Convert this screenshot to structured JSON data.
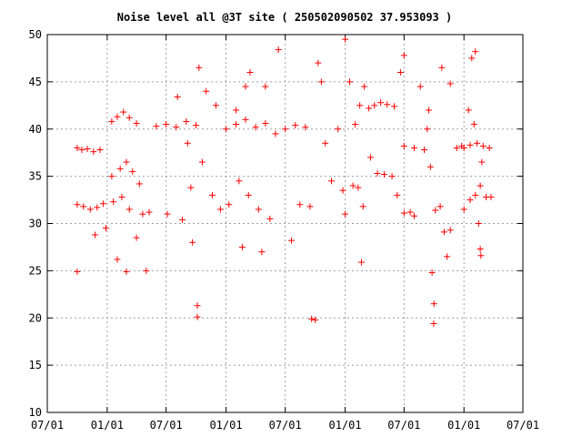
{
  "chart_data": {
    "type": "scatter",
    "title": "Noise level all @3T site ( 250502090502 37.953093 )",
    "xlabel": "",
    "ylabel": "",
    "ylim": [
      10,
      50
    ],
    "xlim": [
      "2002-07-01",
      "2006-07-01"
    ],
    "y_ticks": [
      10,
      15,
      20,
      25,
      30,
      35,
      40,
      45,
      50
    ],
    "x_ticks": [
      {
        "date": "2002-07-01",
        "label": "07/01"
      },
      {
        "date": "2003-01-01",
        "label": "01/01"
      },
      {
        "date": "2003-07-01",
        "label": "07/01"
      },
      {
        "date": "2004-01-01",
        "label": "01/01"
      },
      {
        "date": "2004-07-01",
        "label": "07/01"
      },
      {
        "date": "2005-01-01",
        "label": "01/01"
      },
      {
        "date": "2005-07-01",
        "label": "07/01"
      },
      {
        "date": "2006-01-01",
        "label": "01/01"
      },
      {
        "date": "2006-07-01",
        "label": "07/01"
      }
    ],
    "grid": true,
    "marker": "+",
    "color": "#ff0000",
    "series": [
      {
        "points": [
          [
            "2002-10-01",
            38.0
          ],
          [
            "2002-10-15",
            37.8
          ],
          [
            "2002-11-01",
            37.9
          ],
          [
            "2002-11-20",
            37.6
          ],
          [
            "2002-12-10",
            37.8
          ],
          [
            "2002-10-01",
            32.0
          ],
          [
            "2002-10-20",
            31.8
          ],
          [
            "2002-11-10",
            31.5
          ],
          [
            "2002-12-01",
            31.7
          ],
          [
            "2002-12-20",
            32.1
          ],
          [
            "2002-10-01",
            24.9
          ],
          [
            "2002-11-25",
            28.8
          ],
          [
            "2002-12-28",
            29.5
          ],
          [
            "2003-01-15",
            40.8
          ],
          [
            "2003-02-01",
            41.3
          ],
          [
            "2003-02-20",
            41.8
          ],
          [
            "2003-03-10",
            41.2
          ],
          [
            "2003-04-01",
            40.6
          ],
          [
            "2003-01-15",
            35.0
          ],
          [
            "2003-02-10",
            35.8
          ],
          [
            "2003-03-01",
            36.5
          ],
          [
            "2003-03-20",
            35.5
          ],
          [
            "2003-04-10",
            34.2
          ],
          [
            "2003-01-20",
            32.3
          ],
          [
            "2003-02-15",
            32.8
          ],
          [
            "2003-03-10",
            31.5
          ],
          [
            "2003-04-20",
            31.0
          ],
          [
            "2003-05-10",
            31.2
          ],
          [
            "2003-02-01",
            26.2
          ],
          [
            "2003-03-01",
            24.9
          ],
          [
            "2003-05-01",
            25.0
          ],
          [
            "2003-04-01",
            28.5
          ],
          [
            "2003-06-01",
            40.3
          ],
          [
            "2003-07-01",
            40.5
          ],
          [
            "2003-08-01",
            40.2
          ],
          [
            "2003-09-01",
            40.8
          ],
          [
            "2003-10-01",
            40.4
          ],
          [
            "2003-08-05",
            43.4
          ],
          [
            "2003-09-05",
            38.5
          ],
          [
            "2003-10-10",
            46.5
          ],
          [
            "2003-11-01",
            44.0
          ],
          [
            "2003-12-01",
            42.5
          ],
          [
            "2003-07-05",
            31.0
          ],
          [
            "2003-08-20",
            30.4
          ],
          [
            "2003-09-15",
            33.8
          ],
          [
            "2003-10-20",
            36.5
          ],
          [
            "2003-11-20",
            33.0
          ],
          [
            "2003-10-05",
            21.3
          ],
          [
            "2003-10-05",
            20.1
          ],
          [
            "2003-09-20",
            28.0
          ],
          [
            "2003-12-15",
            31.5
          ],
          [
            "2004-01-01",
            40.0
          ],
          [
            "2004-02-01",
            40.5
          ],
          [
            "2004-03-01",
            41.0
          ],
          [
            "2004-04-01",
            40.2
          ],
          [
            "2004-05-01",
            40.6
          ],
          [
            "2004-02-01",
            42.0
          ],
          [
            "2004-03-01",
            44.5
          ],
          [
            "2004-03-15",
            46.0
          ],
          [
            "2004-05-01",
            44.5
          ],
          [
            "2004-06-10",
            48.4
          ],
          [
            "2004-01-10",
            32.0
          ],
          [
            "2004-02-10",
            34.5
          ],
          [
            "2004-03-10",
            33.0
          ],
          [
            "2004-04-10",
            31.5
          ],
          [
            "2004-05-15",
            30.5
          ],
          [
            "2004-02-20",
            27.5
          ],
          [
            "2004-04-20",
            27.0
          ],
          [
            "2004-06-01",
            39.5
          ],
          [
            "2004-07-01",
            40.0
          ],
          [
            "2004-08-01",
            40.4
          ],
          [
            "2004-09-01",
            40.2
          ],
          [
            "2004-07-20",
            28.2
          ],
          [
            "2004-08-15",
            32.0
          ],
          [
            "2004-09-15",
            31.8
          ],
          [
            "2004-09-20",
            19.9
          ],
          [
            "2004-10-01",
            19.8
          ],
          [
            "2004-10-10",
            47.0
          ],
          [
            "2004-10-20",
            45.0
          ],
          [
            "2004-11-01",
            38.5
          ],
          [
            "2004-11-20",
            34.5
          ],
          [
            "2004-12-10",
            40.0
          ],
          [
            "2004-12-25",
            33.5
          ],
          [
            "2005-01-01",
            49.5
          ],
          [
            "2005-01-15",
            45.0
          ],
          [
            "2005-02-01",
            40.5
          ],
          [
            "2005-02-15",
            42.5
          ],
          [
            "2005-03-01",
            44.5
          ],
          [
            "2005-03-15",
            42.2
          ],
          [
            "2005-04-01",
            42.5
          ],
          [
            "2005-04-20",
            42.8
          ],
          [
            "2005-05-10",
            42.6
          ],
          [
            "2005-06-01",
            42.4
          ],
          [
            "2005-01-01",
            31.0
          ],
          [
            "2005-01-25",
            34.0
          ],
          [
            "2005-02-10",
            33.8
          ],
          [
            "2005-02-20",
            25.9
          ],
          [
            "2005-02-25",
            31.8
          ],
          [
            "2005-03-20",
            37.0
          ],
          [
            "2005-04-10",
            35.3
          ],
          [
            "2005-05-01",
            35.2
          ],
          [
            "2005-05-25",
            35.0
          ],
          [
            "2005-06-10",
            33.0
          ],
          [
            "2005-06-20",
            46.0
          ],
          [
            "2005-07-01",
            47.8
          ],
          [
            "2005-07-01",
            31.1
          ],
          [
            "2005-07-20",
            31.2
          ],
          [
            "2005-08-01",
            30.8
          ],
          [
            "2005-07-01",
            38.2
          ],
          [
            "2005-08-01",
            38.0
          ],
          [
            "2005-09-01",
            37.8
          ],
          [
            "2005-09-10",
            40.0
          ],
          [
            "2005-09-20",
            36.0
          ],
          [
            "2005-08-20",
            44.5
          ],
          [
            "2005-09-15",
            42.0
          ],
          [
            "2005-09-25",
            24.8
          ],
          [
            "2005-10-01",
            21.5
          ],
          [
            "2005-09-30",
            19.4
          ],
          [
            "2005-10-05",
            31.4
          ],
          [
            "2005-10-20",
            31.8
          ],
          [
            "2005-11-01",
            29.1
          ],
          [
            "2005-11-20",
            29.3
          ],
          [
            "2005-10-25",
            46.5
          ],
          [
            "2005-11-10",
            26.5
          ],
          [
            "2005-11-20",
            44.8
          ],
          [
            "2005-12-10",
            38.0
          ],
          [
            "2005-12-25",
            38.2
          ],
          [
            "2006-01-01",
            38.0
          ],
          [
            "2006-01-20",
            38.3
          ],
          [
            "2006-02-10",
            38.5
          ],
          [
            "2006-03-01",
            38.2
          ],
          [
            "2006-03-20",
            38.0
          ],
          [
            "2006-01-01",
            31.5
          ],
          [
            "2006-01-20",
            32.5
          ],
          [
            "2006-02-05",
            33.0
          ],
          [
            "2006-02-20",
            34.0
          ],
          [
            "2006-03-10",
            32.8
          ],
          [
            "2006-01-25",
            47.5
          ],
          [
            "2006-02-05",
            48.2
          ],
          [
            "2006-01-15",
            42.0
          ],
          [
            "2006-02-01",
            40.5
          ],
          [
            "2006-02-25",
            36.5
          ],
          [
            "2006-02-15",
            30.0
          ],
          [
            "2006-02-20",
            27.3
          ],
          [
            "2006-02-22",
            26.6
          ],
          [
            "2006-03-25",
            32.8
          ]
        ]
      }
    ]
  }
}
